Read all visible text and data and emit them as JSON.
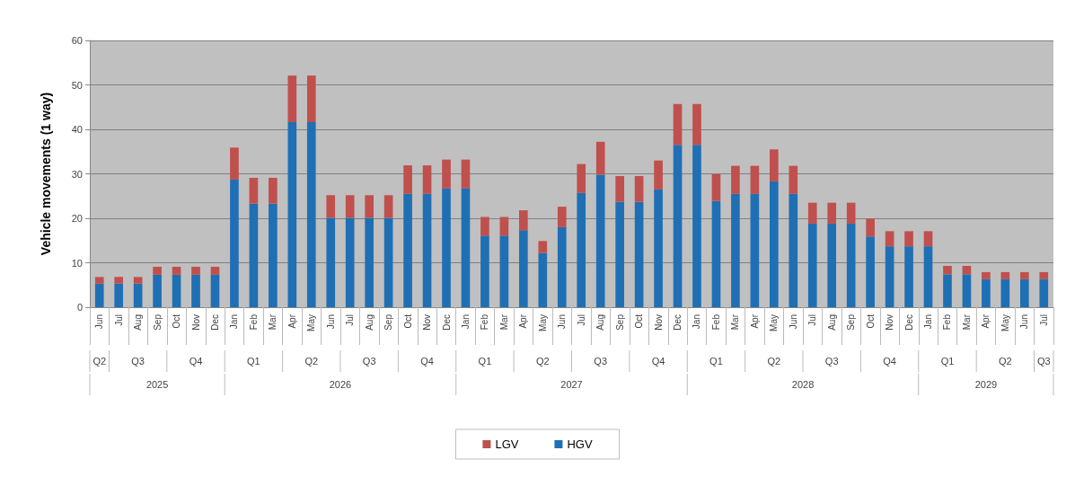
{
  "chart_data": {
    "type": "bar",
    "stacked": true,
    "ylabel": "Vehicle movements (1 way)",
    "categories": [
      "Jun",
      "Jul",
      "Aug",
      "Sep",
      "Oct",
      "Nov",
      "Dec",
      "Jan",
      "Feb",
      "Mar",
      "Apr",
      "May",
      "Jun",
      "Jul",
      "Aug",
      "Sep",
      "Oct",
      "Nov",
      "Dec",
      "Jan",
      "Feb",
      "Mar",
      "Apr",
      "May",
      "Jun",
      "Jul",
      "Aug",
      "Sep",
      "Oct",
      "Nov",
      "Dec",
      "Jan",
      "Feb",
      "Mar",
      "Apr",
      "May",
      "Jun",
      "Jul",
      "Aug",
      "Sep",
      "Oct",
      "Nov",
      "Dec",
      "Jan",
      "Feb",
      "Mar",
      "Apr",
      "May",
      "Jun",
      "Jul"
    ],
    "series": [
      {
        "name": "HGV",
        "color": "#1f6fb4",
        "values": [
          5.3,
          5.3,
          5.3,
          7.3,
          7.3,
          7.3,
          7.3,
          28.7,
          23.3,
          23.3,
          41.6,
          41.6,
          20.1,
          20.1,
          20.1,
          20.1,
          25.5,
          25.5,
          26.7,
          26.7,
          16.1,
          16.1,
          17.3,
          12.2,
          18.0,
          25.7,
          29.8,
          23.7,
          23.7,
          26.5,
          36.5,
          36.5,
          23.9,
          25.5,
          25.5,
          28.3,
          25.5,
          18.8,
          18.8,
          18.8,
          15.9,
          13.7,
          13.7,
          13.7,
          7.4,
          7.4,
          6.3,
          6.3,
          6.3,
          6.3
        ]
      },
      {
        "name": "LGV",
        "color": "#c0504d",
        "values": [
          1.5,
          1.5,
          1.5,
          1.8,
          1.8,
          1.8,
          1.8,
          7.2,
          5.8,
          5.8,
          10.5,
          10.5,
          5.1,
          5.1,
          5.1,
          5.1,
          6.4,
          6.4,
          6.5,
          6.5,
          4.2,
          4.2,
          4.5,
          2.7,
          4.6,
          6.5,
          7.4,
          5.8,
          5.8,
          6.5,
          9.2,
          9.2,
          6.0,
          6.3,
          6.3,
          7.2,
          6.3,
          4.7,
          4.7,
          4.7,
          4.0,
          3.4,
          3.4,
          3.4,
          1.9,
          1.9,
          1.6,
          1.6,
          1.6,
          1.6
        ]
      }
    ],
    "ylim": [
      0,
      60
    ],
    "yticks": [
      0,
      10,
      20,
      30,
      40,
      50,
      60
    ],
    "grid": "y",
    "legend": "bottom",
    "annotations": [
      "Q2",
      "Q3",
      "Q4",
      "Q1",
      "Q2",
      "Q3",
      "Q4",
      "Q1",
      "Q2",
      "Q3",
      "Q4",
      "Q1",
      "Q2",
      "Q3",
      "Q4",
      "Q1",
      "Q2",
      "Q3",
      "2025",
      "2026",
      "2027",
      "2028",
      "2029"
    ]
  }
}
